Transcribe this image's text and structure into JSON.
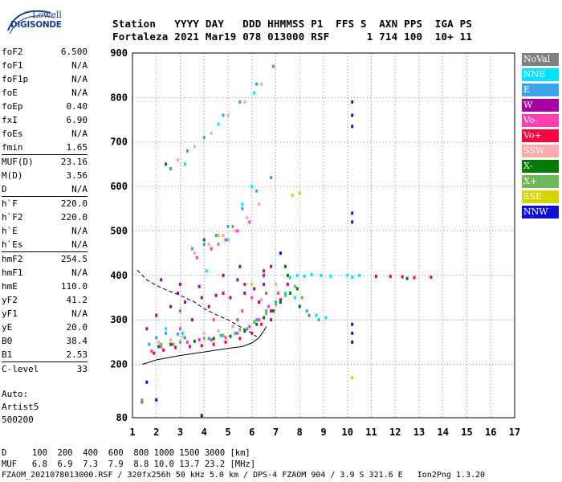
{
  "logo": {
    "line1": "Lowell",
    "line2": "DIGISONDE"
  },
  "header": {
    "line1": "Station   YYYY DAY   DDD HHMMSS P1  FFS S  AXN PPS  IGA PS",
    "line2": "Fortaleza 2021 Mar19 078 013000 RSF      1 714 100  10+ 11"
  },
  "params": [
    {
      "label": "foF2",
      "value": "6.500"
    },
    {
      "label": "foF1",
      "value": "N/A"
    },
    {
      "label": "foF1p",
      "value": "N/A"
    },
    {
      "label": "foE",
      "value": "N/A"
    },
    {
      "label": "foEp",
      "value": "0.40"
    },
    {
      "label": "fxI",
      "value": "6.90"
    },
    {
      "label": "foEs",
      "value": "N/A"
    },
    {
      "label": "fmin",
      "value": "1.65"
    },
    {
      "label": "MUF(D)",
      "value": "23.16",
      "sep": true
    },
    {
      "label": "M(D)",
      "value": "3.56"
    },
    {
      "label": "D",
      "value": "N/A"
    },
    {
      "label": "h`F",
      "value": "220.0",
      "sep": true
    },
    {
      "label": "h`F2",
      "value": "220.0"
    },
    {
      "label": "h`E",
      "value": "N/A"
    },
    {
      "label": "h`Es",
      "value": "N/A"
    },
    {
      "label": "hmF2",
      "value": "254.5",
      "sep": true
    },
    {
      "label": "hmF1",
      "value": "N/A"
    },
    {
      "label": "hmE",
      "value": "110.0"
    },
    {
      "label": "yF2",
      "value": "41.2"
    },
    {
      "label": "yF1",
      "value": "N/A"
    },
    {
      "label": "yE",
      "value": "20.0"
    },
    {
      "label": "B0",
      "value": "38.4"
    },
    {
      "label": "B1",
      "value": "2.53"
    },
    {
      "label": "C-level",
      "value": "33",
      "sep": true
    }
  ],
  "artist": {
    "line1": "Auto:",
    "line2": "Artist5",
    "line3": "500200"
  },
  "footer": {
    "d_row": "D     100  200  400  600  800 1000 1500 3000 [km]",
    "muf_row": "MUF   6.8  6.9  7.3  7.9  8.8 10.0 13.7 23.2 [MHz]",
    "info": "FZAOM_2021078013000.RSF / 320fx256h 50 kHz 5.0 km / DPS-4 FZAOM 904 / 3.9 S 321.6 E   Ion2Png 1.3.20"
  },
  "legend": [
    {
      "label": "NoVal",
      "color": "#808080"
    },
    {
      "label": "NNE",
      "color": "#00e5ff"
    },
    {
      "label": "E",
      "color": "#3ba3e8"
    },
    {
      "label": "W",
      "color": "#a400a4"
    },
    {
      "label": "Vo-",
      "color": "#ff40b0"
    },
    {
      "label": "Vo+",
      "color": "#ff0040"
    },
    {
      "label": "SSW",
      "color": "#ffaaaa"
    },
    {
      "label": "X-",
      "color": "#007a00"
    },
    {
      "label": "X+",
      "color": "#6cb85a"
    },
    {
      "label": "SSE",
      "color": "#d4d400"
    },
    {
      "label": "NNW",
      "color": "#1010d0"
    }
  ],
  "chart_data": {
    "type": "scatter",
    "title": "",
    "xlabel": "",
    "ylabel": "",
    "xlim": [
      1,
      17
    ],
    "ylim": [
      80,
      900
    ],
    "x_ticks": [
      1,
      2,
      3,
      4,
      5,
      6,
      7,
      8,
      9,
      10,
      11,
      12,
      13,
      14,
      15,
      16,
      17
    ],
    "y_ticks": [
      80,
      200,
      300,
      400,
      500,
      600,
      700,
      800,
      900
    ],
    "grid": "dotted",
    "legend_position": "right",
    "series": [
      {
        "name": "NNE",
        "color": "#00e5ff",
        "points": [
          [
            7.6,
            395
          ],
          [
            7.9,
            400
          ],
          [
            8.2,
            398
          ],
          [
            8.5,
            402
          ],
          [
            8.9,
            400
          ],
          [
            9.3,
            398
          ],
          [
            10.0,
            400
          ],
          [
            10.2,
            396
          ],
          [
            10.5,
            400
          ],
          [
            8.7,
            310
          ],
          [
            9.1,
            305
          ],
          [
            7.4,
            360
          ],
          [
            7.8,
            350
          ],
          [
            2.4,
            280
          ],
          [
            3.1,
            270
          ],
          [
            4.1,
            410
          ],
          [
            5.0,
            480
          ],
          [
            5.6,
            560
          ],
          [
            6.0,
            600
          ],
          [
            3.2,
            650
          ],
          [
            4.6,
            740
          ],
          [
            6.1,
            810
          ]
        ]
      },
      {
        "name": "E",
        "color": "#3ba3e8",
        "points": [
          [
            1.7,
            245
          ],
          [
            2.0,
            260
          ],
          [
            2.4,
            270
          ],
          [
            2.9,
            268
          ],
          [
            3.2,
            260
          ],
          [
            3.8,
            255
          ],
          [
            4.2,
            258
          ],
          [
            4.7,
            265
          ],
          [
            5.3,
            270
          ],
          [
            5.8,
            280
          ],
          [
            6.2,
            300
          ],
          [
            6.6,
            320
          ],
          [
            7.0,
            340
          ],
          [
            8.3,
            320
          ],
          [
            8.8,
            300
          ],
          [
            3.5,
            460
          ],
          [
            4.0,
            470
          ],
          [
            4.5,
            490
          ],
          [
            5.0,
            510
          ],
          [
            5.6,
            550
          ],
          [
            6.2,
            590
          ],
          [
            6.8,
            620
          ],
          [
            2.6,
            640
          ],
          [
            3.3,
            680
          ],
          [
            4.0,
            710
          ],
          [
            4.8,
            760
          ],
          [
            5.5,
            790
          ],
          [
            6.2,
            830
          ],
          [
            6.9,
            870
          ]
        ]
      },
      {
        "name": "W",
        "color": "#a400a4",
        "points": [
          [
            1.6,
            280
          ],
          [
            2.0,
            310
          ],
          [
            2.6,
            330
          ],
          [
            3.2,
            340
          ],
          [
            3.9,
            350
          ],
          [
            4.5,
            355
          ],
          [
            5.1,
            350
          ],
          [
            5.7,
            360
          ],
          [
            6.1,
            370
          ],
          [
            6.5,
            380
          ],
          [
            2.2,
            390
          ],
          [
            3.0,
            380
          ],
          [
            3.8,
            375
          ],
          [
            4.8,
            400
          ],
          [
            5.5,
            420
          ],
          [
            6.3,
            340
          ],
          [
            6.8,
            300
          ],
          [
            4.2,
            330
          ],
          [
            3.5,
            300
          ],
          [
            5.4,
            390
          ],
          [
            6.5,
            410
          ],
          [
            2.9,
            360
          ]
        ]
      },
      {
        "name": "Vo-",
        "color": "#ff40b0",
        "points": [
          [
            1.8,
            230
          ],
          [
            2.2,
            240
          ],
          [
            2.7,
            245
          ],
          [
            3.3,
            250
          ],
          [
            3.8,
            255
          ],
          [
            4.3,
            255
          ],
          [
            4.9,
            260
          ],
          [
            5.4,
            270
          ],
          [
            5.9,
            285
          ],
          [
            6.3,
            300
          ],
          [
            6.7,
            330
          ],
          [
            7.1,
            360
          ],
          [
            3.0,
            280
          ],
          [
            4.4,
            300
          ],
          [
            5.6,
            320
          ],
          [
            6.0,
            350
          ],
          [
            3.7,
            440
          ],
          [
            4.3,
            460
          ],
          [
            4.9,
            480
          ],
          [
            5.4,
            500
          ],
          [
            5.9,
            520
          ]
        ]
      },
      {
        "name": "Vo+",
        "color": "#ff0040",
        "points": [
          [
            1.9,
            225
          ],
          [
            2.3,
            232
          ],
          [
            2.8,
            238
          ],
          [
            3.4,
            240
          ],
          [
            3.9,
            242
          ],
          [
            4.4,
            245
          ],
          [
            4.9,
            250
          ],
          [
            5.5,
            258
          ],
          [
            6.0,
            270
          ],
          [
            6.4,
            290
          ],
          [
            6.8,
            320
          ],
          [
            7.2,
            345
          ],
          [
            7.5,
            380
          ],
          [
            4.8,
            360
          ],
          [
            5.7,
            380
          ],
          [
            6.5,
            400
          ],
          [
            6.8,
            420
          ],
          [
            11.2,
            398
          ],
          [
            11.8,
            398
          ],
          [
            12.3,
            397
          ],
          [
            12.8,
            395
          ],
          [
            13.5,
            396
          ]
        ]
      },
      {
        "name": "SSW",
        "color": "#ffaaaa",
        "points": [
          [
            2.1,
            250
          ],
          [
            2.6,
            255
          ],
          [
            3.1,
            262
          ],
          [
            4.0,
            270
          ],
          [
            4.6,
            275
          ],
          [
            5.2,
            285
          ],
          [
            6.4,
            345
          ],
          [
            7.0,
            380
          ],
          [
            3.6,
            450
          ],
          [
            4.2,
            470
          ],
          [
            4.8,
            490
          ],
          [
            5.3,
            500
          ],
          [
            5.8,
            530
          ],
          [
            6.3,
            560
          ],
          [
            2.9,
            660
          ],
          [
            3.6,
            690
          ],
          [
            4.3,
            720
          ],
          [
            5.0,
            760
          ],
          [
            5.7,
            790
          ],
          [
            6.4,
            830
          ]
        ]
      },
      {
        "name": "X-",
        "color": "#007a00",
        "points": [
          [
            1.4,
            118
          ],
          [
            2.1,
            240
          ],
          [
            2.6,
            245
          ],
          [
            3.6,
            252
          ],
          [
            4.4,
            258
          ],
          [
            5.1,
            263
          ],
          [
            5.7,
            275
          ],
          [
            6.2,
            290
          ],
          [
            6.5,
            305
          ],
          [
            6.9,
            320
          ],
          [
            7.2,
            340
          ],
          [
            7.6,
            360
          ],
          [
            7.9,
            370
          ],
          [
            8.0,
            330
          ],
          [
            7.5,
            400
          ],
          [
            7.4,
            420
          ],
          [
            2.4,
            650
          ],
          [
            4.0,
            480
          ],
          [
            12.5,
            393
          ]
        ]
      },
      {
        "name": "X+",
        "color": "#6cb85a",
        "points": [
          [
            1.4,
            120
          ],
          [
            2.2,
            245
          ],
          [
            3.0,
            250
          ],
          [
            4.0,
            258
          ],
          [
            4.8,
            265
          ],
          [
            5.5,
            278
          ],
          [
            6.1,
            295
          ],
          [
            6.6,
            315
          ],
          [
            7.0,
            335
          ],
          [
            7.4,
            355
          ],
          [
            7.8,
            375
          ],
          [
            8.1,
            350
          ],
          [
            4.6,
            470
          ],
          [
            5.2,
            510
          ]
        ]
      },
      {
        "name": "SSE",
        "color": "#d4d400",
        "points": [
          [
            10.2,
            170
          ],
          [
            7.7,
            580
          ],
          [
            8.0,
            585
          ],
          [
            6.0,
            380
          ],
          [
            4.6,
            490
          ]
        ]
      },
      {
        "name": "NNW",
        "color": "#1010d0",
        "points": [
          [
            10.2,
            735
          ],
          [
            10.2,
            760
          ],
          [
            10.2,
            790
          ],
          [
            10.2,
            520
          ],
          [
            10.2,
            540
          ],
          [
            10.2,
            250
          ],
          [
            10.2,
            270
          ],
          [
            10.2,
            290
          ],
          [
            1.6,
            160
          ],
          [
            2.0,
            120
          ],
          [
            3.9,
            85
          ],
          [
            7.2,
            450
          ]
        ]
      },
      {
        "name": "NoVal",
        "color": "#808080",
        "points": [
          [
            1.4,
            115
          ],
          [
            3.0,
            320
          ],
          [
            5.4,
            300
          ],
          [
            6.6,
            360
          ],
          [
            8.4,
            310
          ]
        ]
      }
    ],
    "curves": [
      {
        "name": "profile",
        "style": "solid",
        "points": [
          [
            1.4,
            200
          ],
          [
            2.0,
            210
          ],
          [
            3.0,
            220
          ],
          [
            4.0,
            228
          ],
          [
            5.0,
            236
          ],
          [
            5.6,
            240
          ],
          [
            6.0,
            248
          ],
          [
            6.3,
            260
          ],
          [
            6.5,
            275
          ],
          [
            6.6,
            285
          ]
        ]
      },
      {
        "name": "profile-extrapolated",
        "style": "dashed",
        "points": [
          [
            1.2,
            412
          ],
          [
            1.6,
            390
          ],
          [
            2.2,
            372
          ],
          [
            3.0,
            355
          ],
          [
            3.6,
            340
          ],
          [
            4.0,
            325
          ],
          [
            4.5,
            312
          ],
          [
            5.0,
            300
          ],
          [
            5.5,
            285
          ],
          [
            6.0,
            270
          ],
          [
            6.2,
            262
          ]
        ]
      }
    ]
  }
}
